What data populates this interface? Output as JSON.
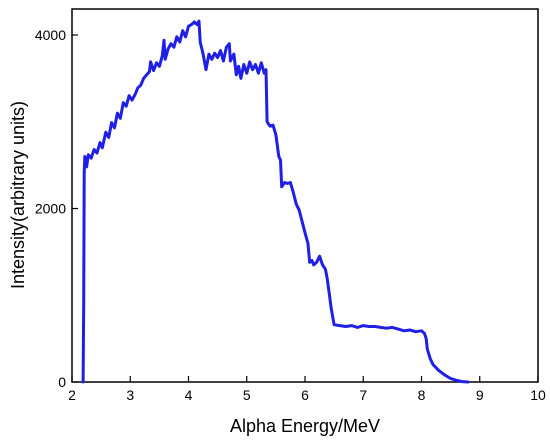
{
  "chart_data": {
    "type": "line",
    "title": "",
    "xlabel": "Alpha Energy/MeV",
    "ylabel": "Intensity(arbitrary units)",
    "xlim": [
      2,
      10
    ],
    "ylim": [
      0,
      4300
    ],
    "x_ticks": [
      "2",
      "3",
      "4",
      "5",
      "6",
      "7",
      "8",
      "9",
      "10"
    ],
    "y_ticks": [
      "0",
      "2000",
      "4000"
    ],
    "x_tick_values": [
      2,
      3,
      4,
      5,
      6,
      7,
      8,
      9,
      10
    ],
    "y_tick_values": [
      0,
      2000,
      4000
    ],
    "grid": false,
    "legend": "none",
    "series": [
      {
        "color": "#1f1fe6",
        "points": [
          [
            2.19,
            0
          ],
          [
            2.2,
            900
          ],
          [
            2.21,
            2400
          ],
          [
            2.22,
            2600
          ],
          [
            2.25,
            2480
          ],
          [
            2.28,
            2620
          ],
          [
            2.33,
            2580
          ],
          [
            2.38,
            2680
          ],
          [
            2.43,
            2640
          ],
          [
            2.48,
            2760
          ],
          [
            2.52,
            2700
          ],
          [
            2.58,
            2880
          ],
          [
            2.63,
            2820
          ],
          [
            2.68,
            2990
          ],
          [
            2.73,
            2930
          ],
          [
            2.78,
            3100
          ],
          [
            2.83,
            3040
          ],
          [
            2.88,
            3220
          ],
          [
            2.93,
            3180
          ],
          [
            2.98,
            3300
          ],
          [
            3.03,
            3250
          ],
          [
            3.08,
            3310
          ],
          [
            3.13,
            3390
          ],
          [
            3.18,
            3420
          ],
          [
            3.23,
            3500
          ],
          [
            3.28,
            3540
          ],
          [
            3.33,
            3580
          ],
          [
            3.35,
            3690
          ],
          [
            3.4,
            3590
          ],
          [
            3.45,
            3680
          ],
          [
            3.5,
            3640
          ],
          [
            3.55,
            3760
          ],
          [
            3.58,
            3940
          ],
          [
            3.6,
            3720
          ],
          [
            3.65,
            3840
          ],
          [
            3.7,
            3900
          ],
          [
            3.75,
            3860
          ],
          [
            3.8,
            3980
          ],
          [
            3.85,
            3920
          ],
          [
            3.9,
            4050
          ],
          [
            3.95,
            3980
          ],
          [
            4.0,
            4100
          ],
          [
            4.05,
            4120
          ],
          [
            4.1,
            4150
          ],
          [
            4.15,
            4120
          ],
          [
            4.18,
            4160
          ],
          [
            4.2,
            3920
          ],
          [
            4.25,
            3780
          ],
          [
            4.3,
            3600
          ],
          [
            4.35,
            3780
          ],
          [
            4.4,
            3720
          ],
          [
            4.45,
            3790
          ],
          [
            4.5,
            3740
          ],
          [
            4.55,
            3820
          ],
          [
            4.6,
            3700
          ],
          [
            4.65,
            3860
          ],
          [
            4.7,
            3900
          ],
          [
            4.72,
            3700
          ],
          [
            4.78,
            3780
          ],
          [
            4.82,
            3540
          ],
          [
            4.86,
            3640
          ],
          [
            4.9,
            3500
          ],
          [
            4.95,
            3660
          ],
          [
            5.0,
            3560
          ],
          [
            5.05,
            3690
          ],
          [
            5.1,
            3600
          ],
          [
            5.15,
            3660
          ],
          [
            5.2,
            3560
          ],
          [
            5.25,
            3680
          ],
          [
            5.3,
            3560
          ],
          [
            5.33,
            3600
          ],
          [
            5.35,
            3000
          ],
          [
            5.4,
            2950
          ],
          [
            5.45,
            2960
          ],
          [
            5.5,
            2850
          ],
          [
            5.55,
            2600
          ],
          [
            5.58,
            2560
          ],
          [
            5.6,
            2250
          ],
          [
            5.65,
            2300
          ],
          [
            5.7,
            2290
          ],
          [
            5.75,
            2300
          ],
          [
            5.8,
            2180
          ],
          [
            5.85,
            2050
          ],
          [
            5.9,
            1980
          ],
          [
            5.95,
            1850
          ],
          [
            6.0,
            1720
          ],
          [
            6.05,
            1600
          ],
          [
            6.08,
            1380
          ],
          [
            6.12,
            1400
          ],
          [
            6.15,
            1350
          ],
          [
            6.2,
            1380
          ],
          [
            6.25,
            1450
          ],
          [
            6.3,
            1350
          ],
          [
            6.35,
            1300
          ],
          [
            6.38,
            1200
          ],
          [
            6.42,
            1000
          ],
          [
            6.45,
            850
          ],
          [
            6.5,
            660
          ],
          [
            6.6,
            650
          ],
          [
            6.7,
            640
          ],
          [
            6.8,
            650
          ],
          [
            6.9,
            630
          ],
          [
            7.0,
            650
          ],
          [
            7.1,
            640
          ],
          [
            7.2,
            640
          ],
          [
            7.3,
            630
          ],
          [
            7.4,
            620
          ],
          [
            7.5,
            630
          ],
          [
            7.6,
            610
          ],
          [
            7.7,
            590
          ],
          [
            7.8,
            600
          ],
          [
            7.9,
            580
          ],
          [
            8.0,
            590
          ],
          [
            8.05,
            560
          ],
          [
            8.08,
            500
          ],
          [
            8.1,
            380
          ],
          [
            8.15,
            270
          ],
          [
            8.2,
            200
          ],
          [
            8.3,
            130
          ],
          [
            8.4,
            80
          ],
          [
            8.5,
            40
          ],
          [
            8.6,
            20
          ],
          [
            8.7,
            5
          ],
          [
            8.8,
            0
          ]
        ]
      }
    ]
  }
}
